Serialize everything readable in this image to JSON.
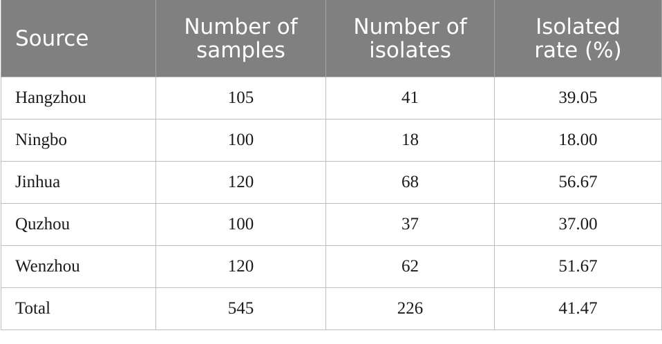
{
  "table": {
    "headers": [
      {
        "line1": "Source",
        "line2": ""
      },
      {
        "line1": "Number of",
        "line2": "samples"
      },
      {
        "line1": "Number of",
        "line2": "isolates"
      },
      {
        "line1": "Isolated",
        "line2": "rate (%)"
      }
    ],
    "rows": [
      {
        "source": "Hangzhou",
        "samples": "105",
        "isolates": "41",
        "rate": "39.05"
      },
      {
        "source": "Ningbo",
        "samples": "100",
        "isolates": "18",
        "rate": "18.00"
      },
      {
        "source": "Jinhua",
        "samples": "120",
        "isolates": "68",
        "rate": "56.67"
      },
      {
        "source": "Quzhou",
        "samples": "100",
        "isolates": "37",
        "rate": "37.00"
      },
      {
        "source": "Wenzhou",
        "samples": "120",
        "isolates": "62",
        "rate": "51.67"
      },
      {
        "source": "Total",
        "samples": "545",
        "isolates": "226",
        "rate": "41.47"
      }
    ]
  }
}
